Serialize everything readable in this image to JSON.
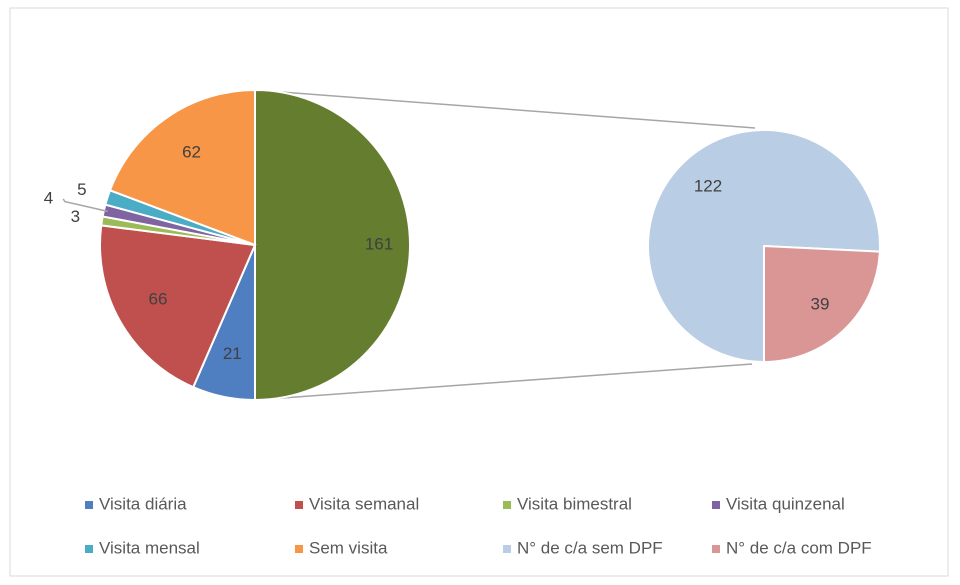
{
  "chart_data": {
    "type": "pie_of_pie",
    "other": {
      "value": 161,
      "color": "#647d2e"
    },
    "main": {
      "categories": [
        "Visita diária",
        "Visita semanal",
        "Visita bimestral",
        "Visita quinzenal",
        "Visita mensal",
        "Sem visita"
      ],
      "values": [
        21,
        66,
        3,
        4,
        5,
        62
      ],
      "colors": [
        "#4f7ec1",
        "#c0504d",
        "#9bbb59",
        "#8064a2",
        "#4bacc6",
        "#f79646"
      ]
    },
    "secondary": {
      "categories": [
        "N° de c/a sem DPF",
        "N° de c/a com DPF"
      ],
      "values": [
        122,
        39
      ],
      "colors": [
        "#b9cde5",
        "#d99694"
      ]
    }
  }
}
